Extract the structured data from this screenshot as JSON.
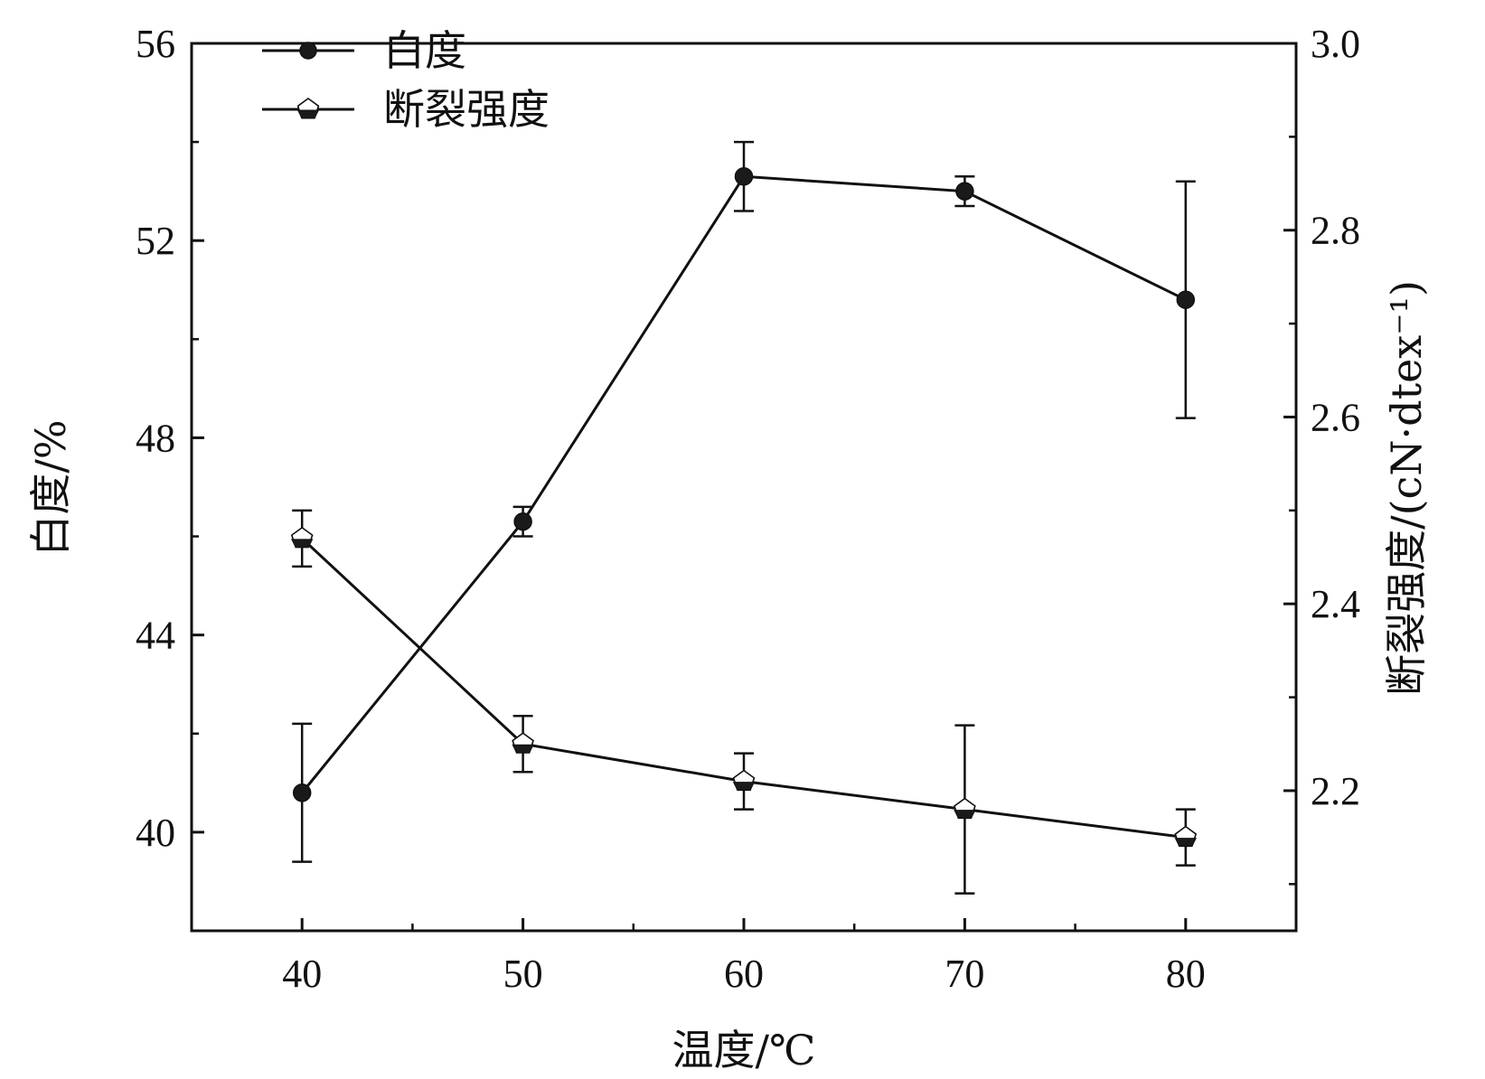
{
  "chart_data": {
    "type": "line",
    "title": "",
    "xlabel": "温度/℃",
    "ylabel": "白度/%",
    "y2label": "断裂强度/(cN·dtex⁻¹)",
    "x": [
      40,
      50,
      60,
      70,
      80
    ],
    "x_ticks": [
      "40",
      "50",
      "60",
      "70",
      "80"
    ],
    "xlim": [
      35,
      85
    ],
    "ylim": [
      38,
      56
    ],
    "y_ticks": [
      "40",
      "44",
      "48",
      "52",
      "56"
    ],
    "y2lim": [
      2.05,
      3.0
    ],
    "y2_ticks": [
      "2.2",
      "2.4",
      "2.6",
      "2.8",
      "3.0"
    ],
    "grid": false,
    "legend_position": "top-left",
    "series": [
      {
        "name": "白度",
        "axis": "left",
        "marker": "filled-circle",
        "values": [
          40.8,
          46.3,
          53.3,
          53.0,
          50.8
        ],
        "error": [
          1.4,
          0.3,
          0.7,
          0.3,
          2.4
        ]
      },
      {
        "name": "断裂强度",
        "axis": "right",
        "marker": "half-filled-pentagon",
        "values": [
          2.47,
          2.25,
          2.21,
          2.18,
          2.15
        ],
        "error": [
          0.03,
          0.03,
          0.03,
          0.09,
          0.03
        ]
      }
    ]
  }
}
